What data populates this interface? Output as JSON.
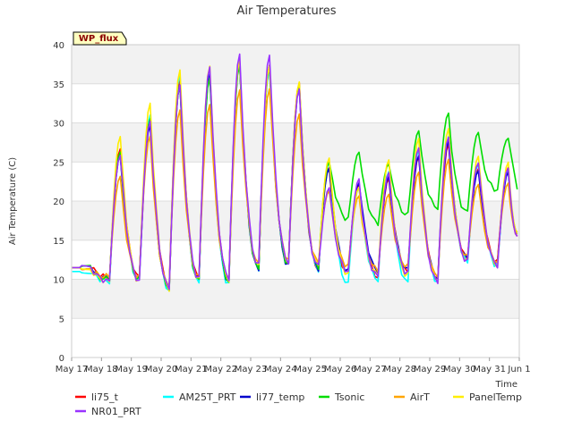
{
  "chart_data": {
    "type": "line",
    "title": "Air Temperatures",
    "xlabel": "Time",
    "ylabel": "Air Temperature (C)",
    "site_label": "WP_flux",
    "ylim": [
      0,
      40
    ],
    "yticks": [
      0,
      5,
      10,
      15,
      20,
      25,
      30,
      35,
      40
    ],
    "xlim": [
      "2024-05-17",
      "2024-06-01"
    ],
    "xtick_labels": [
      "May 17",
      "May 18",
      "May 19",
      "May 20",
      "May 21",
      "May 22",
      "May 23",
      "May 24",
      "May 25",
      "May 26",
      "May 27",
      "May 28",
      "May 29",
      "May 30",
      "May 31",
      "Jun 1"
    ],
    "grid": "horizontal bands",
    "legend_position": "bottom",
    "daily_extremes_shared": {
      "days": [
        "May 17",
        "May 18",
        "May 19",
        "May 20",
        "May 21",
        "May 22",
        "May 23",
        "May 24",
        "May 25",
        "May 26",
        "May 27",
        "May 28",
        "May 29",
        "May 30",
        "May 31"
      ],
      "morning_min": [
        11.5,
        10.0,
        9.5,
        8.5,
        9.5,
        9.5,
        11.5,
        12.0,
        11.5,
        11.0,
        10.0,
        10.5,
        9.5,
        12.5,
        11.5
      ],
      "afternoon_max": [
        null,
        26.0,
        30.0,
        35.0,
        36.0,
        37.5,
        37.0,
        34.5,
        24.5,
        22.5,
        23.0,
        25.5,
        27.5,
        24.0,
        24.0
      ],
      "end_value": 15.5
    },
    "series": [
      {
        "name": "li75_t",
        "color": "#ff0000",
        "daily_max": [
          null,
          26.5,
          30.5,
          35.5,
          36.5,
          38.0,
          37.5,
          35.0,
          24.0,
          22.0,
          23.0,
          26.0,
          27.5,
          24.0,
          24.0
        ],
        "daily_min": [
          11.5,
          10.0,
          10.0,
          9.0,
          10.0,
          10.0,
          11.5,
          12.0,
          11.5,
          11.0,
          10.5,
          11.0,
          10.0,
          12.5,
          12.0
        ]
      },
      {
        "name": "AM25T_PRT",
        "color": "#00ffff",
        "daily_max": [
          null,
          26.5,
          31.0,
          36.0,
          36.0,
          37.5,
          37.0,
          35.0,
          25.0,
          21.5,
          23.5,
          26.5,
          28.5,
          25.0,
          24.0
        ],
        "daily_min": [
          11.0,
          9.5,
          9.5,
          8.5,
          9.5,
          9.5,
          11.5,
          12.0,
          11.5,
          9.5,
          10.0,
          9.5,
          9.5,
          12.0,
          11.5
        ]
      },
      {
        "name": "li77_temp",
        "color": "#0000cc",
        "daily_max": [
          null,
          26.0,
          30.0,
          35.0,
          36.0,
          37.5,
          37.0,
          34.5,
          24.5,
          22.5,
          23.0,
          25.5,
          27.5,
          24.0,
          24.0
        ],
        "daily_min": [
          11.5,
          10.0,
          10.0,
          9.0,
          10.0,
          10.0,
          11.5,
          12.0,
          11.5,
          11.0,
          11.0,
          11.0,
          10.0,
          12.5,
          12.0
        ]
      },
      {
        "name": "Tsonic",
        "color": "#00dd00",
        "daily_max": [
          null,
          26.0,
          30.5,
          35.0,
          36.0,
          37.5,
          37.0,
          34.5,
          25.0,
          26.5,
          25.0,
          29.0,
          31.0,
          28.5,
          28.0
        ],
        "daily_min": [
          11.5,
          10.0,
          10.0,
          9.0,
          10.0,
          10.0,
          11.5,
          12.0,
          11.5,
          17.5,
          17.0,
          18.0,
          19.0,
          18.5,
          21.5
        ]
      },
      {
        "name": "AirT",
        "color": "#ffa500",
        "daily_max": [
          null,
          23.0,
          28.0,
          31.5,
          32.5,
          34.5,
          34.5,
          31.0,
          21.0,
          20.5,
          21.0,
          24.0,
          25.5,
          22.0,
          22.0
        ],
        "daily_min": [
          11.5,
          10.5,
          10.5,
          9.5,
          10.5,
          10.5,
          12.0,
          12.5,
          12.0,
          11.5,
          11.0,
          11.5,
          10.5,
          13.0,
          12.5
        ]
      },
      {
        "name": "PanelTemp",
        "color": "#ffee00",
        "daily_max": [
          null,
          28.5,
          32.5,
          36.5,
          37.0,
          38.0,
          37.5,
          35.5,
          25.5,
          21.5,
          25.0,
          28.0,
          29.5,
          26.0,
          25.0
        ],
        "daily_min": [
          11.5,
          10.0,
          10.0,
          9.0,
          10.0,
          10.0,
          11.5,
          12.0,
          11.5,
          10.5,
          10.5,
          10.5,
          10.0,
          12.5,
          12.0
        ]
      },
      {
        "name": "NR01_PRT",
        "color": "#9933ff",
        "daily_max": [
          null,
          26.0,
          30.5,
          35.0,
          37.0,
          38.5,
          38.5,
          34.5,
          22.0,
          23.0,
          23.5,
          26.5,
          28.0,
          25.0,
          24.5
        ],
        "daily_min": [
          11.5,
          10.0,
          10.0,
          9.0,
          10.0,
          10.0,
          11.5,
          12.0,
          11.5,
          11.0,
          10.5,
          11.0,
          10.0,
          12.5,
          12.0
        ]
      }
    ]
  }
}
